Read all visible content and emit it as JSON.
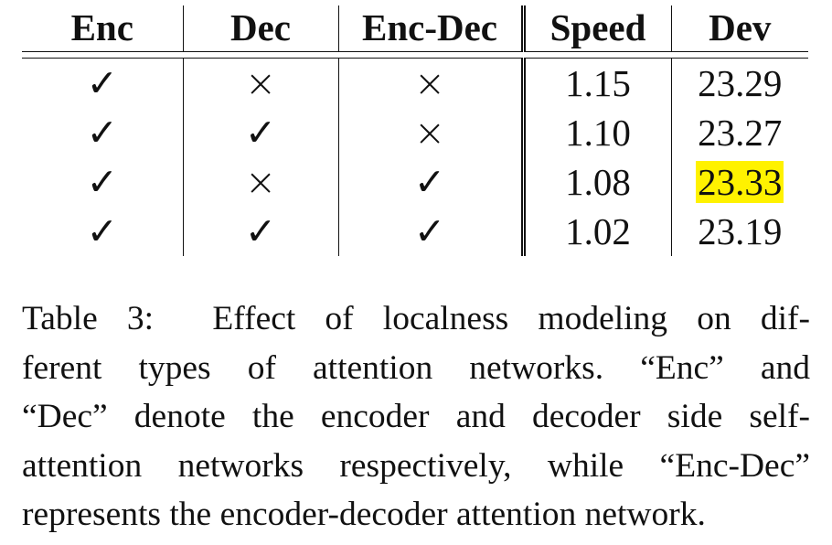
{
  "table": {
    "columns": [
      "Enc",
      "Dec",
      "Enc-Dec",
      "Speed",
      "Dev"
    ],
    "rows": [
      {
        "enc": "✓",
        "dec": "×",
        "encdec": "×",
        "speed": "1.15",
        "dev": "23.29",
        "highlight": false
      },
      {
        "enc": "✓",
        "dec": "✓",
        "encdec": "×",
        "speed": "1.10",
        "dev": "23.27",
        "highlight": false
      },
      {
        "enc": "✓",
        "dec": "×",
        "encdec": "✓",
        "speed": "1.08",
        "dev": "23.33",
        "highlight": true
      },
      {
        "enc": "✓",
        "dec": "✓",
        "encdec": "✓",
        "speed": "1.02",
        "dev": "23.19",
        "highlight": false
      }
    ],
    "highlight_color": "#fff200"
  },
  "caption": {
    "label": "Table 3:",
    "lines": [
      "Effect of localness modeling on dif-",
      "ferent types of attention networks. “Enc” and",
      "“Dec” denote the encoder and decoder side self-",
      "attention networks respectively, while “Enc-Dec”",
      "represents the encoder-decoder attention network."
    ]
  }
}
